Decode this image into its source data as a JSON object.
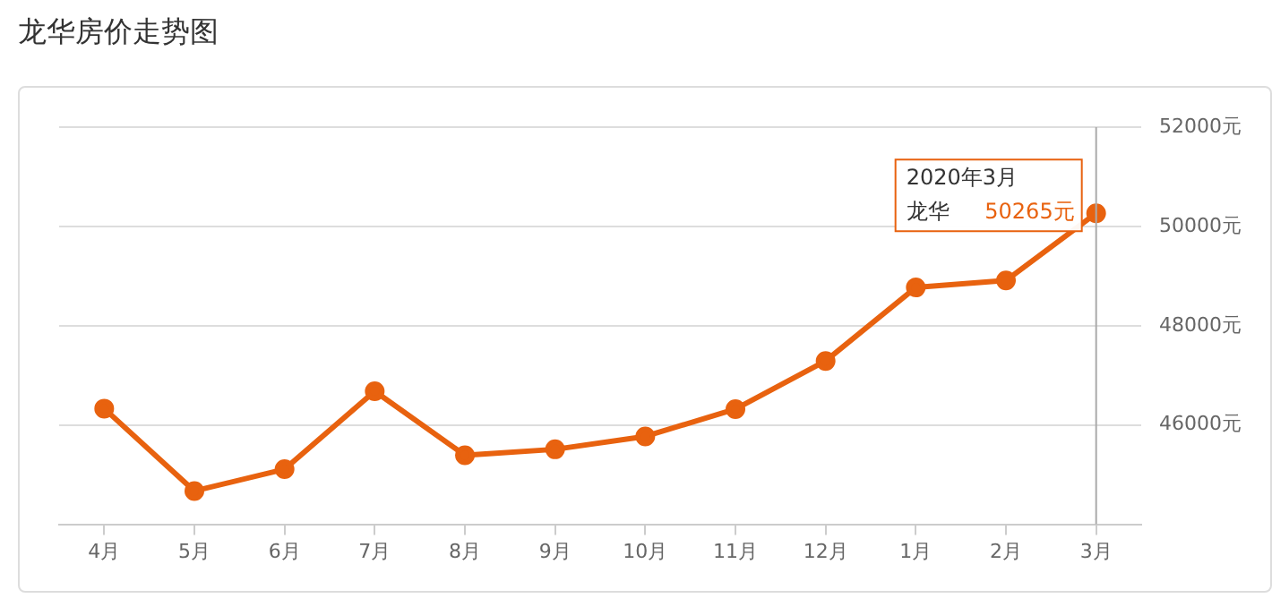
{
  "chart_data": {
    "type": "line",
    "title": "龙华房价走势图",
    "categories": [
      "4月",
      "5月",
      "6月",
      "7月",
      "8月",
      "9月",
      "10月",
      "11月",
      "12月",
      "1月",
      "2月",
      "3月"
    ],
    "series": [
      {
        "name": "龙华",
        "color": "#e8620f",
        "values": [
          46330,
          44670,
          45110,
          46680,
          45390,
          45510,
          45770,
          46320,
          47290,
          48770,
          48910,
          50265
        ],
        "value_labels": [
          null,
          null,
          null,
          null,
          null,
          null,
          null,
          null,
          null,
          null,
          null,
          "50265元"
        ]
      }
    ],
    "ylim": [
      44000,
      52000
    ],
    "yticks": [
      {
        "value": 44000,
        "label": null
      },
      {
        "value": 46000,
        "label": "46000元"
      },
      {
        "value": 48000,
        "label": "48000元"
      },
      {
        "value": 50000,
        "label": "50000元"
      },
      {
        "value": 52000,
        "label": "52000元"
      }
    ],
    "annotations": [
      "2020年3月"
    ],
    "ref_lines": [
      {
        "axis": "x",
        "value": "3月",
        "color": "#aaaaaa"
      }
    ],
    "grid": "y",
    "legend": false,
    "marker": "circle",
    "line_style": "solid"
  }
}
